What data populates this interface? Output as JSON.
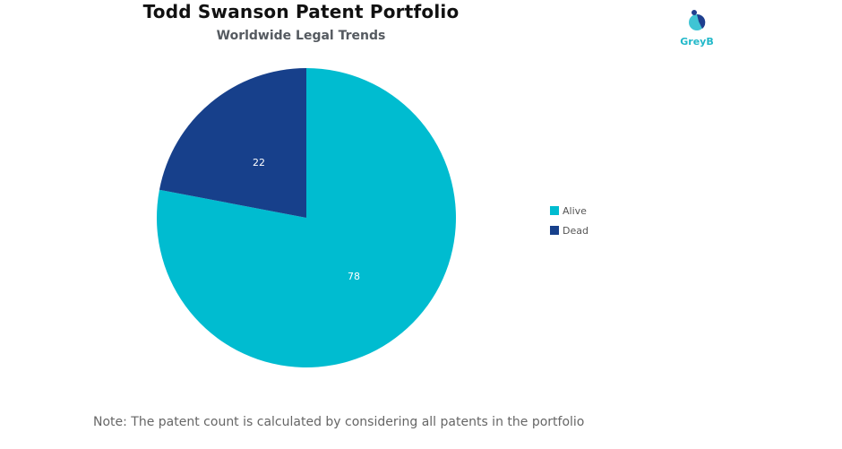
{
  "header": {
    "title": "Todd Swanson Patent Portfolio",
    "subtitle": "Worldwide Legal Trends",
    "logo_text": "GreyB"
  },
  "legend": {
    "items": [
      {
        "label": "Alive",
        "color": "#00bcd0"
      },
      {
        "label": "Dead",
        "color": "#17408b"
      }
    ]
  },
  "slice_labels": {
    "alive": "78",
    "dead": "22"
  },
  "footer": {
    "note": "Note: The patent count is calculated by considering all patents in the portfolio"
  },
  "chart_data": {
    "type": "pie",
    "title": "Todd Swanson Patent Portfolio",
    "subtitle": "Worldwide Legal Trends",
    "categories": [
      "Alive",
      "Dead"
    ],
    "values": [
      78,
      22
    ],
    "colors": [
      "#00bcd0",
      "#17408b"
    ],
    "data_labels": [
      "78",
      "22"
    ],
    "legend_position": "right",
    "annotations": [
      "Note: The patent count is calculated by considering all patents in the portfolio"
    ]
  }
}
